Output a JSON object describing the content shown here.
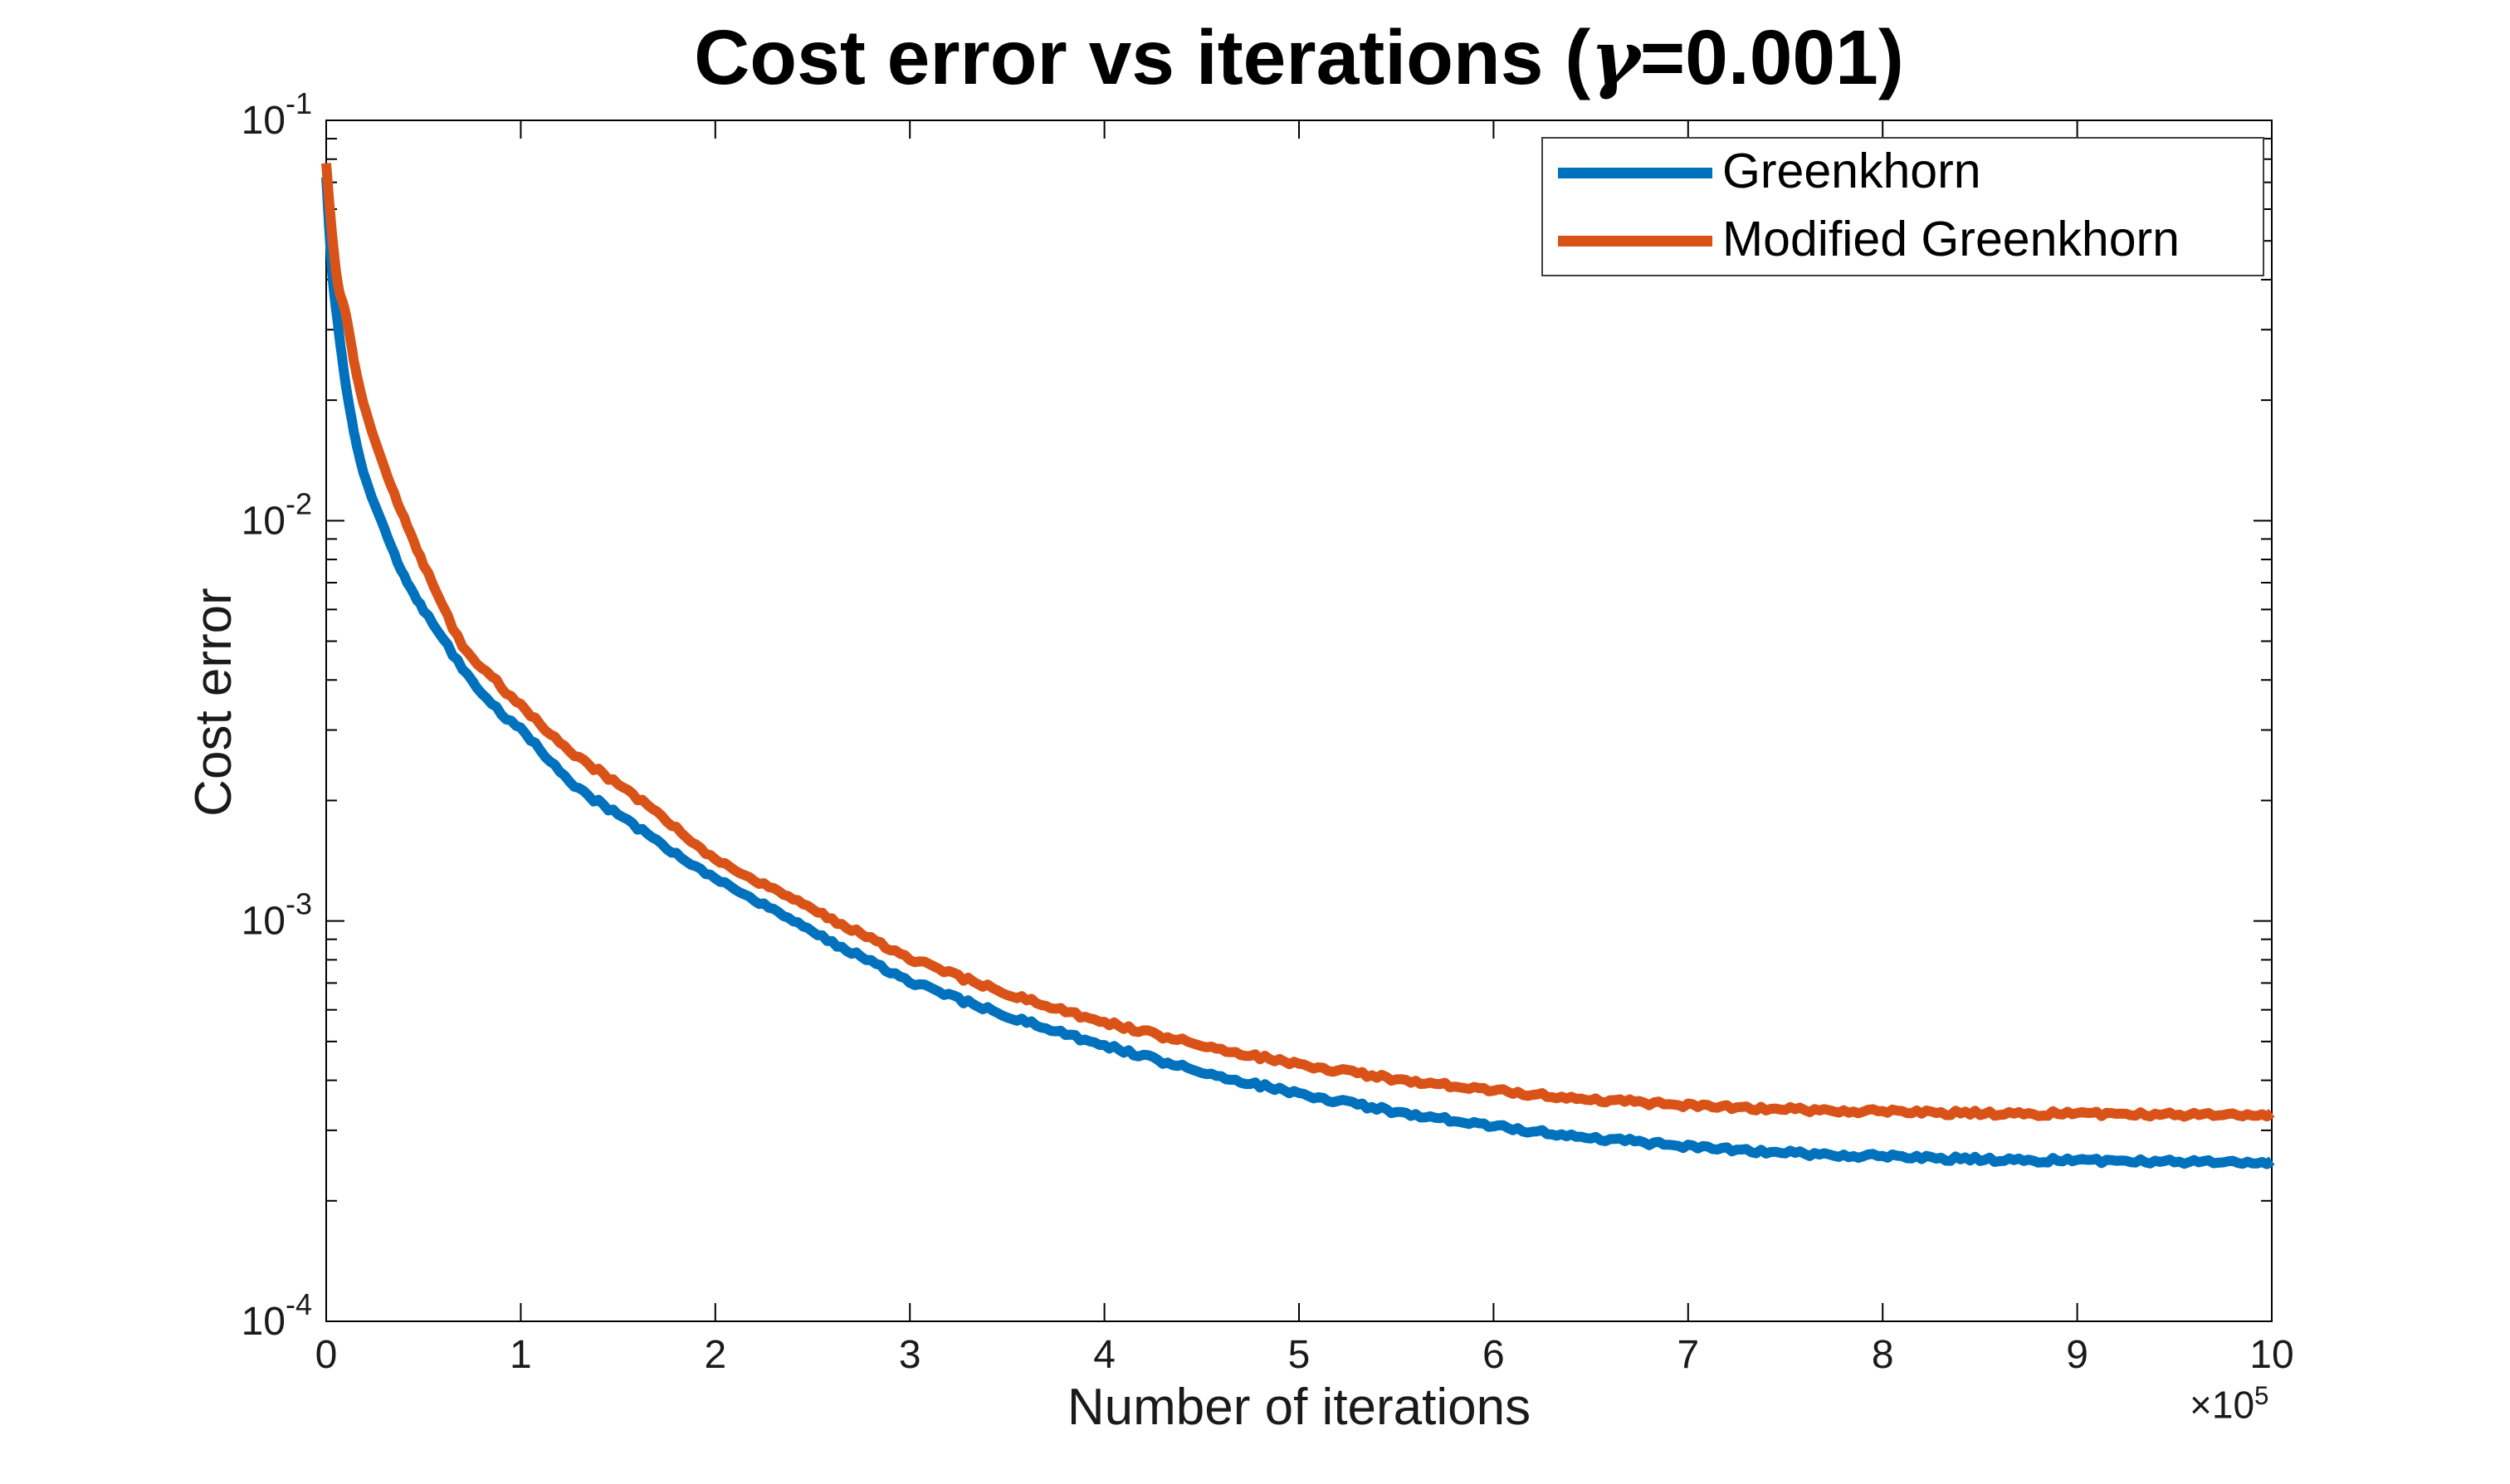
{
  "figure": {
    "title": {
      "prefix": "Cost error vs iterations (",
      "gamma": "γ",
      "suffix": "=0.001)"
    },
    "xlabel": "Number of iterations",
    "ylabel": "Cost error",
    "x_axis_offset": {
      "times": "×10",
      "exp": "5"
    },
    "colors": {
      "blue": "#0072BD",
      "orange": "#D95319",
      "axis": "#000000",
      "background": "#ffffff"
    },
    "legend": [
      {
        "label": "Greenkhorn",
        "color": "#0072BD"
      },
      {
        "label": "Modified Greenkhorn",
        "color": "#D95319"
      }
    ]
  },
  "chart_data": {
    "type": "line",
    "title": "Cost error vs iterations (γ=0.001)",
    "xlabel": "Number of iterations",
    "ylabel": "Cost error",
    "x_unit": "×10^5 iterations",
    "xlim": [
      0,
      10
    ],
    "ylim": [
      0.0001,
      0.1
    ],
    "y_scale": "log",
    "grid": false,
    "legend_position": "northeast",
    "x_ticks": [
      0,
      1,
      2,
      3,
      4,
      5,
      6,
      7,
      8,
      9,
      10
    ],
    "y_tick_exponents": [
      -1,
      -2,
      -3,
      -4
    ],
    "x": [
      0,
      0.03,
      0.06,
      0.1,
      0.15,
      0.2,
      0.3,
      0.4,
      0.5,
      0.7,
      0.85,
      1.0,
      1.3,
      1.5,
      1.75,
      2.0,
      2.5,
      3.0,
      3.5,
      4.0,
      4.5,
      5.0,
      5.5,
      6.0,
      6.5,
      7.0,
      7.5,
      8.0,
      8.5,
      9.0,
      9.5,
      10.0
    ],
    "series": [
      {
        "name": "Greenkhorn",
        "color": "#0072BD",
        "values": [
          0.072,
          0.042,
          0.031,
          0.022,
          0.016,
          0.0128,
          0.0095,
          0.0073,
          0.006,
          0.0043,
          0.0035,
          0.003,
          0.00214,
          0.00185,
          0.00152,
          0.00128,
          0.00094,
          0.00071,
          0.00058,
          0.00049,
          0.00042,
          0.00037,
          0.000334,
          0.000307,
          0.000288,
          0.000274,
          0.000264,
          0.000258,
          0.000254,
          0.000252,
          0.000251,
          0.00025
        ]
      },
      {
        "name": "Modified Greenkhorn",
        "color": "#D95319",
        "values": [
          0.078,
          0.052,
          0.039,
          0.033,
          0.024,
          0.019,
          0.0135,
          0.0102,
          0.0078,
          0.0049,
          0.0041,
          0.00344,
          0.00256,
          0.0022,
          0.00178,
          0.00143,
          0.00107,
          0.00081,
          0.00066,
          0.00056,
          0.00049,
          0.000438,
          0.000403,
          0.000377,
          0.000359,
          0.000347,
          0.000339,
          0.000334,
          0.000331,
          0.00033,
          0.000329,
          0.000329
        ]
      }
    ]
  }
}
